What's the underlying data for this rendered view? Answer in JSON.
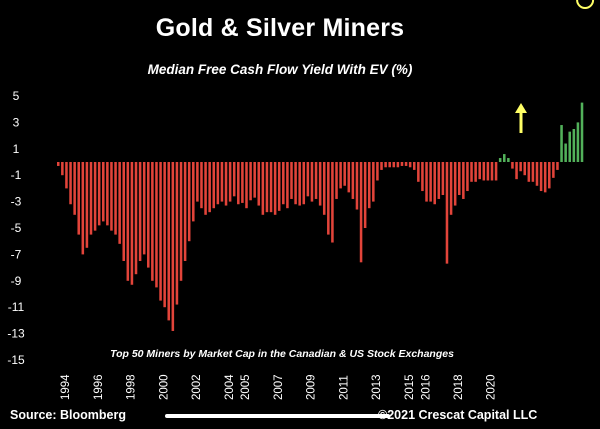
{
  "chart_data": {
    "type": "bar",
    "title": "Gold & Silver Miners",
    "subtitle": "Median Free Cash Flow Yield With EV (%)",
    "annotation": "Top 50 Miners by Market Cap in the Canadian & US Stock Exchanges",
    "ylim": [
      -15,
      5
    ],
    "yticks": [
      "5",
      "3",
      "1",
      "-1",
      "-3",
      "-5",
      "-7",
      "-9",
      "-11",
      "-13",
      "-15"
    ],
    "yticks_values": [
      5,
      3,
      1,
      -1,
      -3,
      -5,
      -7,
      -9,
      -11,
      -13,
      -15
    ],
    "xticks": [
      "1994",
      "1996",
      "1998",
      "2000",
      "2002",
      "2004",
      "2005",
      "2007",
      "2009",
      "2011",
      "2013",
      "2015",
      "2016",
      "2018",
      "2020"
    ],
    "xlim": [
      1993.5,
      2021.3
    ],
    "bar_x_start": 1993.5,
    "bar_x_step": 0.25,
    "grid": false,
    "colors": {
      "negative": "#e2443a",
      "positive": "#52b15a",
      "highlight": "#ffff66"
    },
    "values": [
      -0.3,
      -1,
      -2,
      -3.2,
      -4,
      -5.5,
      -7,
      -6.5,
      -5.5,
      -5.2,
      -4.8,
      -4.5,
      -4.8,
      -5.2,
      -5.5,
      -6.2,
      -7.5,
      -9,
      -9.3,
      -8.5,
      -7.5,
      -7,
      -8,
      -9,
      -9.5,
      -10.5,
      -11,
      -12,
      -12.8,
      -10.8,
      -9,
      -7.5,
      -6,
      -4.5,
      -3,
      -3.5,
      -4,
      -3.8,
      -3.5,
      -3.2,
      -3,
      -3.3,
      -3,
      -2.6,
      -3.2,
      -3.1,
      -3.5,
      -2.9,
      -2.7,
      -3.3,
      -4,
      -3.8,
      -3.8,
      -4,
      -3.7,
      -3.2,
      -3.5,
      -2.8,
      -3.2,
      -3.3,
      -3.2,
      -2.6,
      -3,
      -2.8,
      -3.3,
      -4,
      -5.5,
      -6.1,
      -2.8,
      -2,
      -1.8,
      -2.3,
      -2.8,
      -3.6,
      -7.6,
      -5,
      -3.5,
      -3,
      -1.4,
      -0.6,
      -0.4,
      -0.4,
      -0.4,
      -0.4,
      -0.3,
      -0.3,
      -0.4,
      -0.6,
      -1.5,
      -2.2,
      -3,
      -3,
      -3.2,
      -2.8,
      -2.5,
      -7.7,
      -4,
      -3.3,
      -2.5,
      -2.8,
      -2.2,
      -1.5,
      -1.5,
      -1.3,
      -1.4,
      -1.4,
      -1.4,
      -1.4,
      0.3,
      0.6,
      0.3,
      -0.5,
      -1.3,
      -0.7,
      -1,
      -1.5,
      -1.5,
      -1.8,
      -2.2,
      -2.3,
      -2,
      -1.2,
      -0.6,
      2.8,
      1.4,
      2.3,
      2.5,
      3,
      4.5
    ],
    "highlight_circle_index": 129,
    "up_arrow": true
  },
  "footer": {
    "source": "Source: Bloomberg",
    "copyright": "©2021 Crescat Capital LLC"
  }
}
